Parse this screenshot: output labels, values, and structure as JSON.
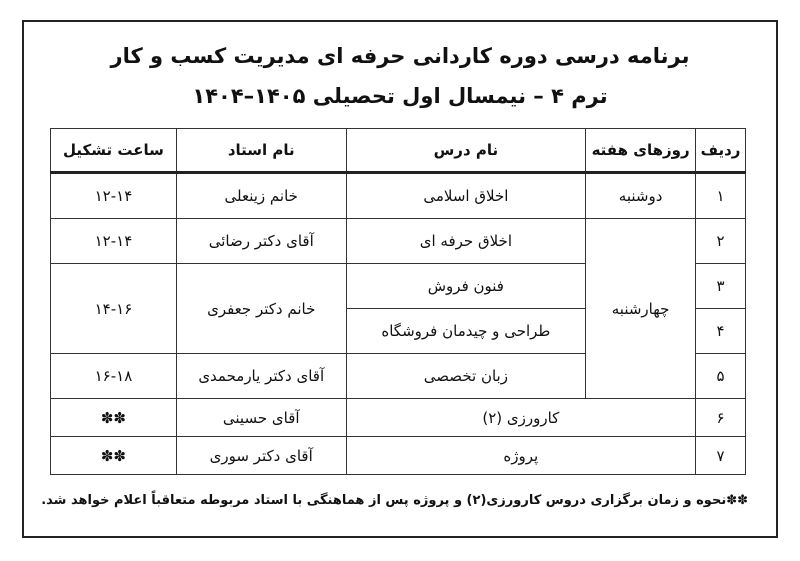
{
  "title_line1": "برنامه درسی دوره کاردانی حرفه ای مدیریت کسب و کار",
  "title_line2": "ترم ۴ – نیمسال اول تحصیلی ۱۴۰۵–۱۴۰۴",
  "table": {
    "headers": [
      "ردیف",
      "روزهای هفته",
      "نام درس",
      "نام استاد",
      "ساعت تشکیل"
    ],
    "rows": [
      {
        "no": "۱",
        "day": "دوشنبه",
        "course": "اخلاق اسلامی",
        "teacher": "خانم زینعلی",
        "time": "۱۲-۱۴"
      },
      {
        "no": "۲",
        "day": "چهارشنبه",
        "course": "اخلاق حرفه ای",
        "teacher": "آقای دکتر رضائی",
        "time": "۱۲-۱۴"
      },
      {
        "no": "۳",
        "course": "فنون فروش",
        "teacher": "خانم دکتر جعفری",
        "time": "۱۴-۱۶"
      },
      {
        "no": "۴",
        "course": "طراحی و چیدمان فروشگاه"
      },
      {
        "no": "۵",
        "course": "زبان تخصصی",
        "teacher": "آقای دکتر یارمحمدی",
        "time": "۱۶-۱۸"
      },
      {
        "no": "۶",
        "course": "کارورزی (۲)",
        "teacher": "آقای حسینی",
        "time": "✽✽"
      },
      {
        "no": "۷",
        "course": "پروژه",
        "teacher": "آقای دکتر سوری",
        "time": "✽✽"
      }
    ]
  },
  "footnote": "✽✽نحوه و زمان برگزاری دروس کارورزی(۲) و پروژه پس از هماهنگی با استاد مربوطه متعاقباً اعلام خواهد شد."
}
